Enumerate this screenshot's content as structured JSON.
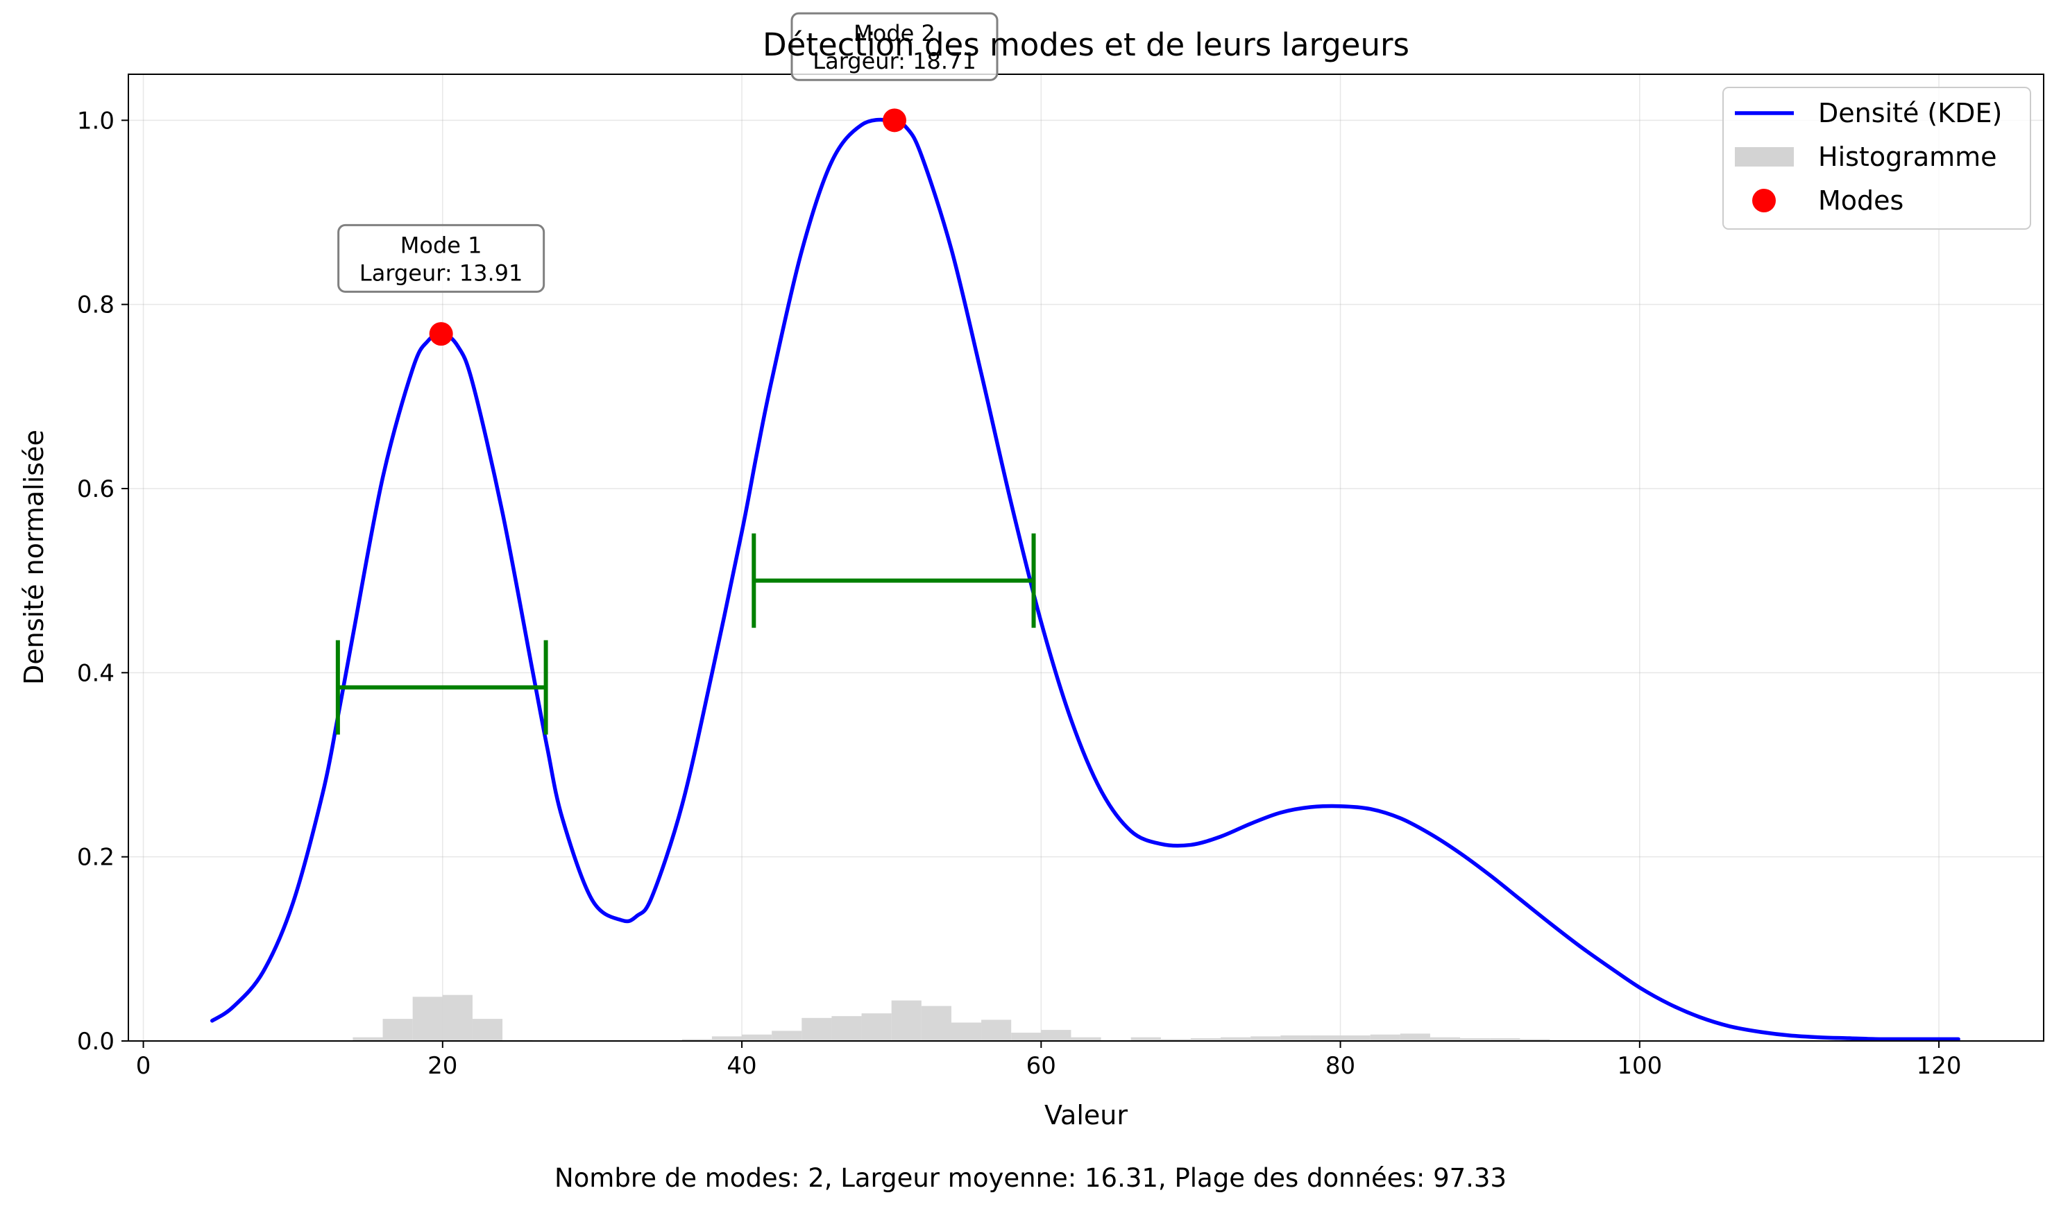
{
  "chart_data": {
    "type": "line",
    "title": "Détection des modes et de leurs largeurs",
    "xlabel": "Valeur",
    "ylabel": "Densité normalisée",
    "xlim": [
      -1,
      127
    ],
    "ylim": [
      0,
      1.05
    ],
    "x_ticks": [
      0,
      20,
      40,
      60,
      80,
      100,
      120
    ],
    "y_ticks": [
      0.0,
      0.2,
      0.4,
      0.6,
      0.8,
      1.0
    ],
    "grid": true,
    "legend_position": "top-right",
    "legend": [
      {
        "label": "Densité (KDE)",
        "kind": "line",
        "color": "#0000ff"
      },
      {
        "label": "Histogramme",
        "kind": "patch",
        "color": "#d3d3d3"
      },
      {
        "label": "Modes",
        "kind": "marker",
        "color": "#ff0000"
      }
    ],
    "kde_series": {
      "name": "Densité (KDE)",
      "color": "#0000ff",
      "x": [
        4.6,
        6,
        8,
        10,
        12,
        13,
        14,
        16,
        18,
        19,
        20,
        21,
        22,
        24,
        26,
        27,
        28,
        30,
        32,
        33,
        34,
        36,
        38,
        40,
        41,
        42,
        44,
        46,
        48,
        50,
        51,
        52,
        54,
        56,
        58,
        60,
        62,
        64,
        66,
        68,
        70,
        72,
        74,
        76,
        78,
        80,
        82,
        84,
        86,
        88,
        90,
        92,
        94,
        96,
        98,
        100,
        102,
        104,
        106,
        108,
        110,
        112,
        114,
        116,
        118,
        120,
        121.3
      ],
      "y": [
        0.022,
        0.037,
        0.075,
        0.15,
        0.27,
        0.352,
        0.44,
        0.612,
        0.73,
        0.76,
        0.768,
        0.755,
        0.715,
        0.574,
        0.403,
        0.318,
        0.242,
        0.153,
        0.131,
        0.136,
        0.157,
        0.256,
        0.399,
        0.553,
        0.638,
        0.718,
        0.858,
        0.955,
        0.995,
        1.0,
        0.992,
        0.962,
        0.86,
        0.725,
        0.584,
        0.455,
        0.349,
        0.272,
        0.228,
        0.214,
        0.213,
        0.222,
        0.236,
        0.248,
        0.254,
        0.255,
        0.252,
        0.242,
        0.225,
        0.204,
        0.18,
        0.154,
        0.128,
        0.103,
        0.08,
        0.058,
        0.04,
        0.026,
        0.016,
        0.01,
        0.006,
        0.004,
        0.003,
        0.002,
        0.002,
        0.002,
        0.002
      ]
    },
    "histogram": {
      "name": "Histogramme",
      "color": "#d3d3d3",
      "bin_width": 2,
      "bin_starts": [
        14,
        16,
        18,
        20,
        22,
        24,
        36,
        38,
        40,
        42,
        44,
        46,
        48,
        50,
        52,
        54,
        56,
        58,
        60,
        62,
        64,
        66,
        68,
        70,
        72,
        74,
        76,
        78,
        80,
        82,
        84,
        86,
        88,
        90,
        92,
        94,
        96,
        98
      ],
      "values": [
        0.004,
        0.024,
        0.048,
        0.05,
        0.024,
        0.001,
        0.002,
        0.005,
        0.007,
        0.011,
        0.025,
        0.027,
        0.03,
        0.044,
        0.038,
        0.02,
        0.023,
        0.009,
        0.012,
        0.004,
        0.001,
        0.004,
        0.002,
        0.003,
        0.004,
        0.005,
        0.006,
        0.006,
        0.006,
        0.007,
        0.008,
        0.004,
        0.003,
        0.003,
        0.002,
        0.001,
        0.001,
        0.001
      ]
    },
    "modes": [
      {
        "label": "Mode 1",
        "width_label": "Largeur: 13.91",
        "x": 19.9,
        "y": 0.768,
        "half_height": 0.384,
        "left": 13.0,
        "right": 26.9,
        "annotation_y": 0.85
      },
      {
        "label": "Mode 2",
        "width_label": "Largeur: 18.71",
        "x": 50.2,
        "y": 1.0,
        "half_height": 0.5,
        "left": 40.8,
        "right": 59.5,
        "annotation_y": 1.08
      }
    ],
    "mode_marker_color": "#ff0000",
    "width_bar_color": "#008000",
    "footer": "Nombre de modes: 2, Largeur moyenne: 16.31, Plage des données: 97.33"
  }
}
